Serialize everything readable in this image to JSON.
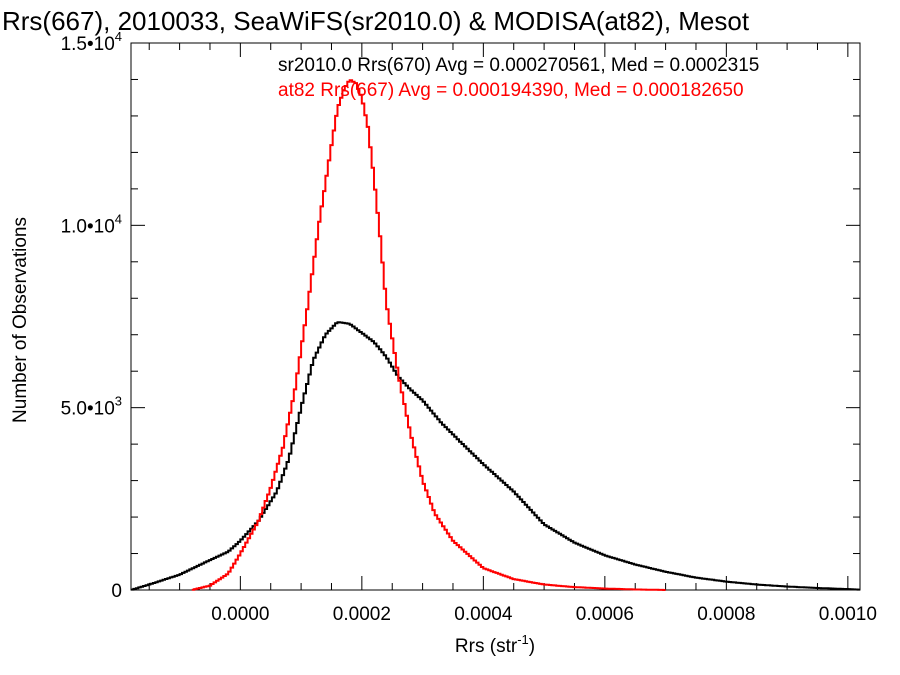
{
  "chart_data": {
    "type": "line",
    "title": "Rrs(667), 2010033, SeaWiFS(sr2010.0) & MODISA(at82), Mesot",
    "xlabel": "Rrs (str",
    "xlabel_sup": "-1",
    "xlabel_close": ")",
    "ylabel": "Number of Observations",
    "xlim": [
      -0.00018,
      0.00102
    ],
    "ylim": [
      0,
      15000
    ],
    "x_ticks": [
      0.0,
      0.0002,
      0.0004,
      0.0006,
      0.0008,
      0.001
    ],
    "x_tick_labels": [
      "0.0000",
      "0.0002",
      "0.0004",
      "0.0006",
      "0.0008",
      "0.0010"
    ],
    "y_ticks": [
      0,
      5000,
      10000,
      15000
    ],
    "y_tick_labels": [
      {
        "mant": "0",
        "exp": ""
      },
      {
        "mant": "5.0•10",
        "exp": "3"
      },
      {
        "mant": "1.0•10",
        "exp": "4"
      },
      {
        "mant": "1.5•10",
        "exp": "4"
      }
    ],
    "annotations": [
      "sr2010.0 Rrs(670) Avg = 0.000270561, Med = 0.0002315",
      "at82 Rrs(667) Avg = 0.000194390, Med = 0.000182650"
    ],
    "series": [
      {
        "color": "#000000",
        "x": [
          -0.00018,
          -0.00015,
          -0.0001,
          -5e-05,
          -2e-05,
          0.0,
          3e-05,
          6e-05,
          8e-05,
          0.0001,
          0.00012,
          0.00014,
          0.00016,
          0.00018,
          0.0002,
          0.00022,
          0.00024,
          0.00026,
          0.00028,
          0.0003,
          0.00033,
          0.00036,
          0.0004,
          0.00045,
          0.0005,
          0.00055,
          0.0006,
          0.00065,
          0.0007,
          0.00075,
          0.0008,
          0.00085,
          0.0009,
          0.00095,
          0.001,
          0.00102
        ],
        "y": [
          0,
          150,
          420,
          820,
          1050,
          1350,
          1900,
          2700,
          3600,
          5000,
          6300,
          7000,
          7350,
          7300,
          7050,
          6800,
          6400,
          5850,
          5500,
          5200,
          4600,
          4100,
          3450,
          2700,
          1800,
          1300,
          950,
          700,
          500,
          340,
          230,
          150,
          95,
          55,
          25,
          10
        ]
      },
      {
        "color": "#ff0000",
        "x": [
          -8e-05,
          -5e-05,
          -2e-05,
          0.0,
          3e-05,
          5e-05,
          7e-05,
          9e-05,
          0.00011,
          0.00013,
          0.00015,
          0.00016,
          0.00017,
          0.00018,
          0.00019,
          0.0002,
          0.00021,
          0.00022,
          0.00023,
          0.00024,
          0.00026,
          0.00028,
          0.0003,
          0.00032,
          0.00035,
          0.0004,
          0.00045,
          0.0005,
          0.00055,
          0.0006,
          0.00065,
          0.0007
        ],
        "y": [
          0,
          120,
          450,
          1000,
          1900,
          2800,
          3900,
          5500,
          7700,
          10100,
          12200,
          13200,
          13700,
          14000,
          13900,
          13500,
          12700,
          11300,
          9700,
          7900,
          5900,
          4300,
          3000,
          2100,
          1350,
          600,
          300,
          150,
          80,
          40,
          15,
          0
        ]
      }
    ]
  }
}
